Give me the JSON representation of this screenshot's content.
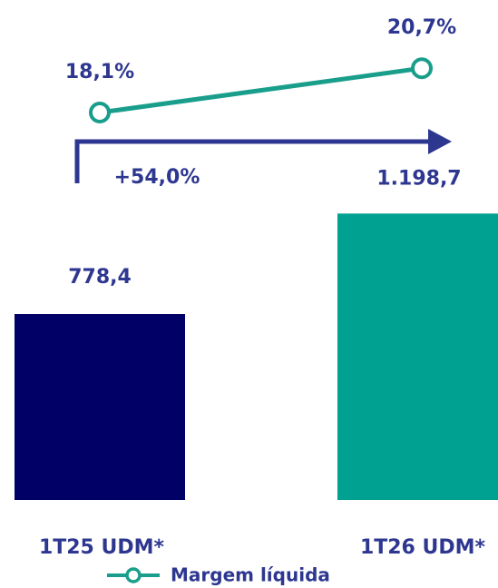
{
  "chart_data": {
    "type": "bar",
    "categories": [
      "1T25 UDM*",
      "1T26 UDM*"
    ],
    "series": [
      {
        "type": "bar",
        "colors": [
          "#000066",
          "#00a191"
        ],
        "values": [
          778.4,
          1198.7
        ],
        "value_labels": [
          "778,4",
          "1.198,7"
        ]
      },
      {
        "type": "line",
        "name": "Margem líquida",
        "axis": "y2",
        "color": "#1a9e8c",
        "values": [
          18.1,
          20.7
        ],
        "value_labels": [
          "18,1%",
          "20,7%"
        ]
      }
    ],
    "annotations": [
      "+54,0%"
    ],
    "ylim": [
      0,
      1200
    ],
    "y2lim": [
      14,
      23
    ],
    "legend": "bottom"
  }
}
